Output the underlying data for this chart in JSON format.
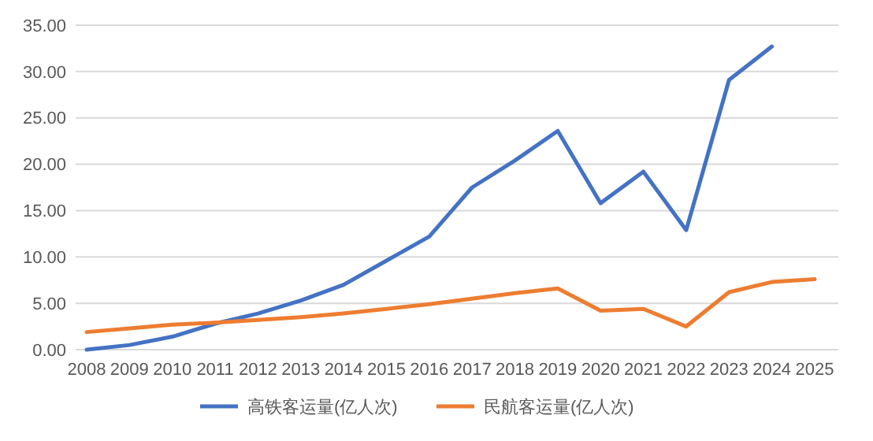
{
  "chart_data": {
    "type": "line",
    "categories": [
      "2008",
      "2009",
      "2010",
      "2011",
      "2012",
      "2013",
      "2014",
      "2015",
      "2016",
      "2017",
      "2018",
      "2019",
      "2020",
      "2021",
      "2022",
      "2023",
      "2024",
      "2025"
    ],
    "series": [
      {
        "name": "高铁客运量(亿人次)",
        "color": "#4472c4",
        "values": [
          0.0,
          0.5,
          1.4,
          2.8,
          3.9,
          5.3,
          7.0,
          9.6,
          12.2,
          17.5,
          20.4,
          23.6,
          15.8,
          19.2,
          12.9,
          29.1,
          32.7,
          null
        ]
      },
      {
        "name": "民航客运量(亿人次)",
        "color": "#ed7d31",
        "values": [
          1.9,
          2.3,
          2.7,
          2.9,
          3.2,
          3.5,
          3.9,
          4.4,
          4.9,
          5.5,
          6.1,
          6.6,
          4.2,
          4.4,
          2.5,
          6.2,
          7.3,
          7.6
        ]
      }
    ],
    "ylim": [
      0,
      35
    ],
    "yticks": [
      {
        "value": 0,
        "label": "0.00"
      },
      {
        "value": 5,
        "label": "5.00"
      },
      {
        "value": 10,
        "label": "10.00"
      },
      {
        "value": 15,
        "label": "15.00"
      },
      {
        "value": 20,
        "label": "20.00"
      },
      {
        "value": 25,
        "label": "25.00"
      },
      {
        "value": 30,
        "label": "30.00"
      },
      {
        "value": 35,
        "label": "35.00"
      }
    ],
    "grid": "y",
    "legend": "bottom",
    "marker": "none",
    "line_style": "solid"
  }
}
